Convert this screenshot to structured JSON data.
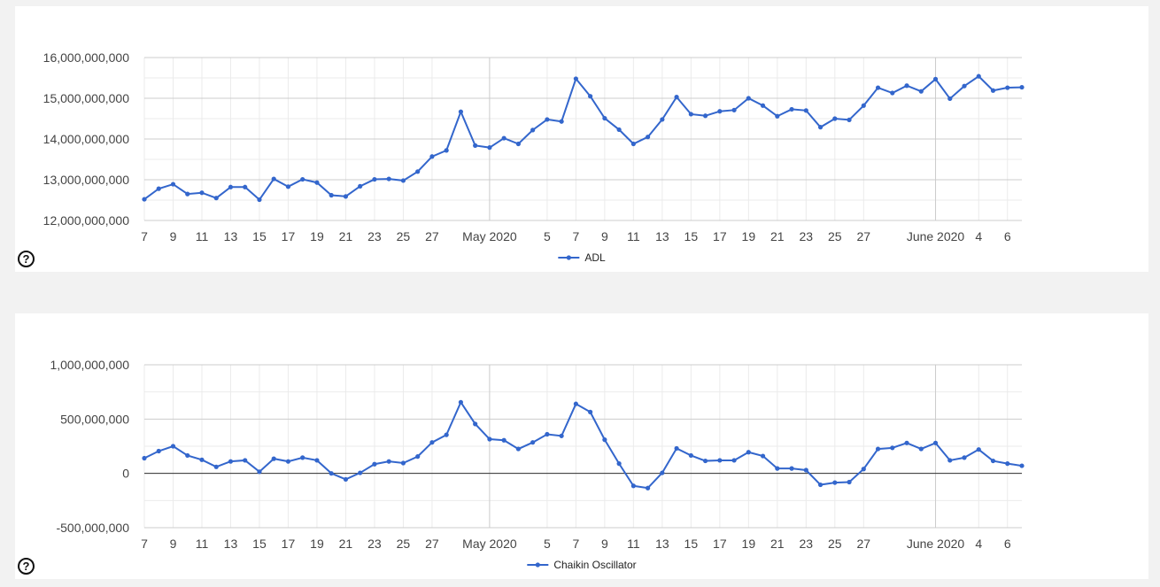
{
  "help_symbol": "?",
  "chart_data": [
    {
      "type": "line",
      "title": "",
      "xlabel": "",
      "ylabel": "",
      "x_start": "2020-04-07",
      "x_tick_labels": [
        {
          "date": "2020-04-07",
          "label": "7"
        },
        {
          "date": "2020-04-09",
          "label": "9"
        },
        {
          "date": "2020-04-11",
          "label": "11"
        },
        {
          "date": "2020-04-13",
          "label": "13"
        },
        {
          "date": "2020-04-15",
          "label": "15"
        },
        {
          "date": "2020-04-17",
          "label": "17"
        },
        {
          "date": "2020-04-19",
          "label": "19"
        },
        {
          "date": "2020-04-21",
          "label": "21"
        },
        {
          "date": "2020-04-23",
          "label": "23"
        },
        {
          "date": "2020-04-25",
          "label": "25"
        },
        {
          "date": "2020-04-27",
          "label": "27"
        },
        {
          "date": "2020-05-01",
          "label": "May 2020"
        },
        {
          "date": "2020-05-05",
          "label": "5"
        },
        {
          "date": "2020-05-07",
          "label": "7"
        },
        {
          "date": "2020-05-09",
          "label": "9"
        },
        {
          "date": "2020-05-11",
          "label": "11"
        },
        {
          "date": "2020-05-13",
          "label": "13"
        },
        {
          "date": "2020-05-15",
          "label": "15"
        },
        {
          "date": "2020-05-17",
          "label": "17"
        },
        {
          "date": "2020-05-19",
          "label": "19"
        },
        {
          "date": "2020-05-21",
          "label": "21"
        },
        {
          "date": "2020-05-23",
          "label": "23"
        },
        {
          "date": "2020-05-25",
          "label": "25"
        },
        {
          "date": "2020-05-27",
          "label": "27"
        },
        {
          "date": "2020-06-01",
          "label": "June 2020"
        },
        {
          "date": "2020-06-04",
          "label": "4"
        },
        {
          "date": "2020-06-06",
          "label": "6"
        }
      ],
      "month_boundaries": [
        "2020-05-01",
        "2020-06-01"
      ],
      "ylim": [
        12000000000,
        16000000000
      ],
      "y_ticks": [
        12000000000,
        13000000000,
        14000000000,
        15000000000,
        16000000000
      ],
      "y_tick_labels": [
        "12,000,000,000",
        "13,000,000,000",
        "14,000,000,000",
        "15,000,000,000",
        "16,000,000,000"
      ],
      "grid": true,
      "legend_position": "bottom",
      "series": [
        {
          "name": "ADL",
          "color": "#3366cc",
          "points": [
            [
              "2020-04-07",
              12520000000
            ],
            [
              "2020-04-08",
              12780000000
            ],
            [
              "2020-04-09",
              12890000000
            ],
            [
              "2020-04-10",
              12650000000
            ],
            [
              "2020-04-11",
              12680000000
            ],
            [
              "2020-04-12",
              12550000000
            ],
            [
              "2020-04-13",
              12820000000
            ],
            [
              "2020-04-14",
              12820000000
            ],
            [
              "2020-04-15",
              12510000000
            ],
            [
              "2020-04-16",
              13020000000
            ],
            [
              "2020-04-17",
              12830000000
            ],
            [
              "2020-04-18",
              13010000000
            ],
            [
              "2020-04-19",
              12930000000
            ],
            [
              "2020-04-20",
              12620000000
            ],
            [
              "2020-04-21",
              12590000000
            ],
            [
              "2020-04-22",
              12840000000
            ],
            [
              "2020-04-23",
              13010000000
            ],
            [
              "2020-04-24",
              13020000000
            ],
            [
              "2020-04-25",
              12980000000
            ],
            [
              "2020-04-26",
              13200000000
            ],
            [
              "2020-04-27",
              13570000000
            ],
            [
              "2020-04-28",
              13720000000
            ],
            [
              "2020-04-29",
              14670000000
            ],
            [
              "2020-04-30",
              13840000000
            ],
            [
              "2020-05-01",
              13790000000
            ],
            [
              "2020-05-02",
              14020000000
            ],
            [
              "2020-05-03",
              13880000000
            ],
            [
              "2020-05-04",
              14220000000
            ],
            [
              "2020-05-05",
              14480000000
            ],
            [
              "2020-05-06",
              14430000000
            ],
            [
              "2020-05-07",
              15480000000
            ],
            [
              "2020-05-08",
              15050000000
            ],
            [
              "2020-05-09",
              14510000000
            ],
            [
              "2020-05-10",
              14230000000
            ],
            [
              "2020-05-11",
              13880000000
            ],
            [
              "2020-05-12",
              14050000000
            ],
            [
              "2020-05-13",
              14480000000
            ],
            [
              "2020-05-14",
              15030000000
            ],
            [
              "2020-05-15",
              14610000000
            ],
            [
              "2020-05-16",
              14570000000
            ],
            [
              "2020-05-17",
              14680000000
            ],
            [
              "2020-05-18",
              14710000000
            ],
            [
              "2020-05-19",
              15000000000
            ],
            [
              "2020-05-20",
              14820000000
            ],
            [
              "2020-05-21",
              14560000000
            ],
            [
              "2020-05-22",
              14730000000
            ],
            [
              "2020-05-23",
              14700000000
            ],
            [
              "2020-05-24",
              14290000000
            ],
            [
              "2020-05-25",
              14500000000
            ],
            [
              "2020-05-26",
              14470000000
            ],
            [
              "2020-05-27",
              14820000000
            ],
            [
              "2020-05-28",
              15260000000
            ],
            [
              "2020-05-29",
              15130000000
            ],
            [
              "2020-05-30",
              15310000000
            ],
            [
              "2020-05-31",
              15170000000
            ],
            [
              "2020-06-01",
              15470000000
            ],
            [
              "2020-06-02",
              14990000000
            ],
            [
              "2020-06-03",
              15300000000
            ],
            [
              "2020-06-04",
              15540000000
            ],
            [
              "2020-06-05",
              15190000000
            ],
            [
              "2020-06-06",
              15260000000
            ],
            [
              "2020-06-07",
              15270000000
            ]
          ]
        }
      ]
    },
    {
      "type": "line",
      "title": "",
      "xlabel": "",
      "ylabel": "",
      "x_start": "2020-04-07",
      "x_tick_labels": [
        {
          "date": "2020-04-07",
          "label": "7"
        },
        {
          "date": "2020-04-09",
          "label": "9"
        },
        {
          "date": "2020-04-11",
          "label": "11"
        },
        {
          "date": "2020-04-13",
          "label": "13"
        },
        {
          "date": "2020-04-15",
          "label": "15"
        },
        {
          "date": "2020-04-17",
          "label": "17"
        },
        {
          "date": "2020-04-19",
          "label": "19"
        },
        {
          "date": "2020-04-21",
          "label": "21"
        },
        {
          "date": "2020-04-23",
          "label": "23"
        },
        {
          "date": "2020-04-25",
          "label": "25"
        },
        {
          "date": "2020-04-27",
          "label": "27"
        },
        {
          "date": "2020-05-01",
          "label": "May 2020"
        },
        {
          "date": "2020-05-05",
          "label": "5"
        },
        {
          "date": "2020-05-07",
          "label": "7"
        },
        {
          "date": "2020-05-09",
          "label": "9"
        },
        {
          "date": "2020-05-11",
          "label": "11"
        },
        {
          "date": "2020-05-13",
          "label": "13"
        },
        {
          "date": "2020-05-15",
          "label": "15"
        },
        {
          "date": "2020-05-17",
          "label": "17"
        },
        {
          "date": "2020-05-19",
          "label": "19"
        },
        {
          "date": "2020-05-21",
          "label": "21"
        },
        {
          "date": "2020-05-23",
          "label": "23"
        },
        {
          "date": "2020-05-25",
          "label": "25"
        },
        {
          "date": "2020-05-27",
          "label": "27"
        },
        {
          "date": "2020-06-01",
          "label": "June 2020"
        },
        {
          "date": "2020-06-04",
          "label": "4"
        },
        {
          "date": "2020-06-06",
          "label": "6"
        }
      ],
      "month_boundaries": [
        "2020-05-01",
        "2020-06-01"
      ],
      "ylim": [
        -500000000,
        1000000000
      ],
      "y_ticks": [
        -500000000,
        0,
        500000000,
        1000000000
      ],
      "y_tick_labels": [
        "-500,000,000",
        "0",
        "500,000,000",
        "1,000,000,000"
      ],
      "zero_line": true,
      "grid": true,
      "legend_position": "bottom",
      "series": [
        {
          "name": "Chaikin Oscillator",
          "color": "#3366cc",
          "points": [
            [
              "2020-04-07",
              140000000
            ],
            [
              "2020-04-08",
              205000000
            ],
            [
              "2020-04-09",
              250000000
            ],
            [
              "2020-04-10",
              165000000
            ],
            [
              "2020-04-11",
              125000000
            ],
            [
              "2020-04-12",
              60000000
            ],
            [
              "2020-04-13",
              110000000
            ],
            [
              "2020-04-14",
              120000000
            ],
            [
              "2020-04-15",
              15000000
            ],
            [
              "2020-04-16",
              135000000
            ],
            [
              "2020-04-17",
              110000000
            ],
            [
              "2020-04-18",
              145000000
            ],
            [
              "2020-04-19",
              120000000
            ],
            [
              "2020-04-20",
              0
            ],
            [
              "2020-04-21",
              -55000000
            ],
            [
              "2020-04-22",
              5000000
            ],
            [
              "2020-04-23",
              85000000
            ],
            [
              "2020-04-24",
              110000000
            ],
            [
              "2020-04-25",
              95000000
            ],
            [
              "2020-04-26",
              155000000
            ],
            [
              "2020-04-27",
              285000000
            ],
            [
              "2020-04-28",
              355000000
            ],
            [
              "2020-04-29",
              655000000
            ],
            [
              "2020-04-30",
              455000000
            ],
            [
              "2020-05-01",
              315000000
            ],
            [
              "2020-05-02",
              305000000
            ],
            [
              "2020-05-03",
              225000000
            ],
            [
              "2020-05-04",
              285000000
            ],
            [
              "2020-05-05",
              360000000
            ],
            [
              "2020-05-06",
              345000000
            ],
            [
              "2020-05-07",
              640000000
            ],
            [
              "2020-05-08",
              565000000
            ],
            [
              "2020-05-09",
              310000000
            ],
            [
              "2020-05-10",
              90000000
            ],
            [
              "2020-05-11",
              -115000000
            ],
            [
              "2020-05-12",
              -135000000
            ],
            [
              "2020-05-13",
              5000000
            ],
            [
              "2020-05-14",
              230000000
            ],
            [
              "2020-05-15",
              165000000
            ],
            [
              "2020-05-16",
              115000000
            ],
            [
              "2020-05-17",
              120000000
            ],
            [
              "2020-05-18",
              120000000
            ],
            [
              "2020-05-19",
              195000000
            ],
            [
              "2020-05-20",
              160000000
            ],
            [
              "2020-05-21",
              45000000
            ],
            [
              "2020-05-22",
              45000000
            ],
            [
              "2020-05-23",
              30000000
            ],
            [
              "2020-05-24",
              -105000000
            ],
            [
              "2020-05-25",
              -85000000
            ],
            [
              "2020-05-26",
              -80000000
            ],
            [
              "2020-05-27",
              40000000
            ],
            [
              "2020-05-28",
              225000000
            ],
            [
              "2020-05-29",
              235000000
            ],
            [
              "2020-05-30",
              280000000
            ],
            [
              "2020-05-31",
              225000000
            ],
            [
              "2020-06-01",
              280000000
            ],
            [
              "2020-06-02",
              120000000
            ],
            [
              "2020-06-03",
              145000000
            ],
            [
              "2020-06-04",
              220000000
            ],
            [
              "2020-06-05",
              115000000
            ],
            [
              "2020-06-06",
              90000000
            ],
            [
              "2020-06-07",
              70000000
            ]
          ]
        }
      ]
    }
  ]
}
